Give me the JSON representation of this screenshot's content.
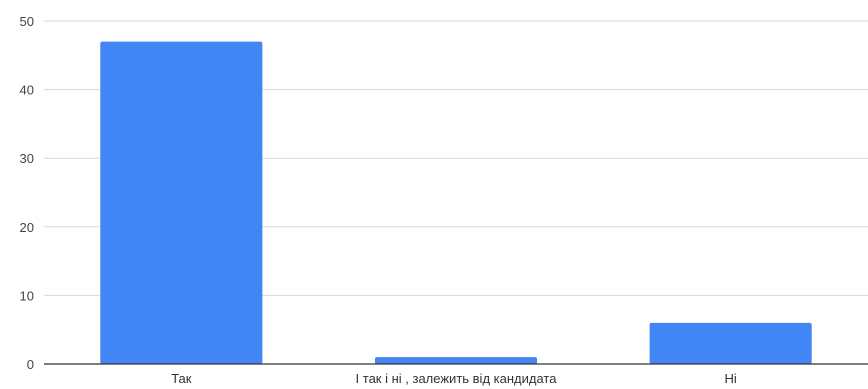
{
  "chart_data": {
    "type": "bar",
    "categories": [
      "Так",
      "І так і ні , залежить від кандидата",
      "Ні"
    ],
    "values": [
      47,
      1,
      6
    ],
    "ylim": [
      0,
      50
    ],
    "yticks": [
      0,
      10,
      20,
      30,
      40,
      50
    ],
    "grid": true,
    "legend": "none",
    "colors": {
      "bar": "#4285f4"
    }
  }
}
